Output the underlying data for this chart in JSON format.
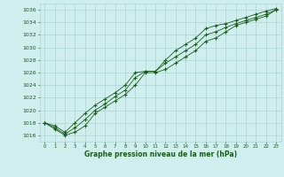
{
  "xlabel": "Graphe pression niveau de la mer (hPa)",
  "ylim": [
    1015.0,
    1037.0
  ],
  "xlim": [
    -0.5,
    23.5
  ],
  "yticks": [
    1016,
    1018,
    1020,
    1022,
    1024,
    1026,
    1028,
    1030,
    1032,
    1034,
    1036
  ],
  "xticks": [
    0,
    1,
    2,
    3,
    4,
    5,
    6,
    7,
    8,
    9,
    10,
    11,
    12,
    13,
    14,
    15,
    16,
    17,
    18,
    19,
    20,
    21,
    22,
    23
  ],
  "background_color": "#d0eeee",
  "grid_color": "#aad4d4",
  "line_color": "#1a5c1a",
  "series1": [
    1018.0,
    1017.0,
    1016.0,
    1016.5,
    1017.5,
    1019.5,
    1020.5,
    1021.5,
    1022.5,
    1024.0,
    1026.0,
    1026.0,
    1026.5,
    1027.5,
    1028.5,
    1029.5,
    1031.0,
    1031.5,
    1032.5,
    1033.5,
    1034.0,
    1034.5,
    1035.0,
    1036.0
  ],
  "series2": [
    1018.0,
    1017.2,
    1016.2,
    1017.2,
    1018.5,
    1020.0,
    1021.0,
    1022.2,
    1023.2,
    1025.2,
    1026.2,
    1026.2,
    1027.5,
    1028.5,
    1029.5,
    1030.5,
    1032.0,
    1032.5,
    1033.2,
    1033.8,
    1034.3,
    1034.8,
    1035.3,
    1036.0
  ],
  "series3": [
    1018.0,
    1017.5,
    1016.5,
    1018.0,
    1019.5,
    1020.8,
    1021.8,
    1022.8,
    1024.0,
    1026.0,
    1026.2,
    1026.2,
    1028.0,
    1029.5,
    1030.5,
    1031.5,
    1033.0,
    1033.5,
    1033.8,
    1034.3,
    1034.8,
    1035.3,
    1035.8,
    1036.2
  ]
}
